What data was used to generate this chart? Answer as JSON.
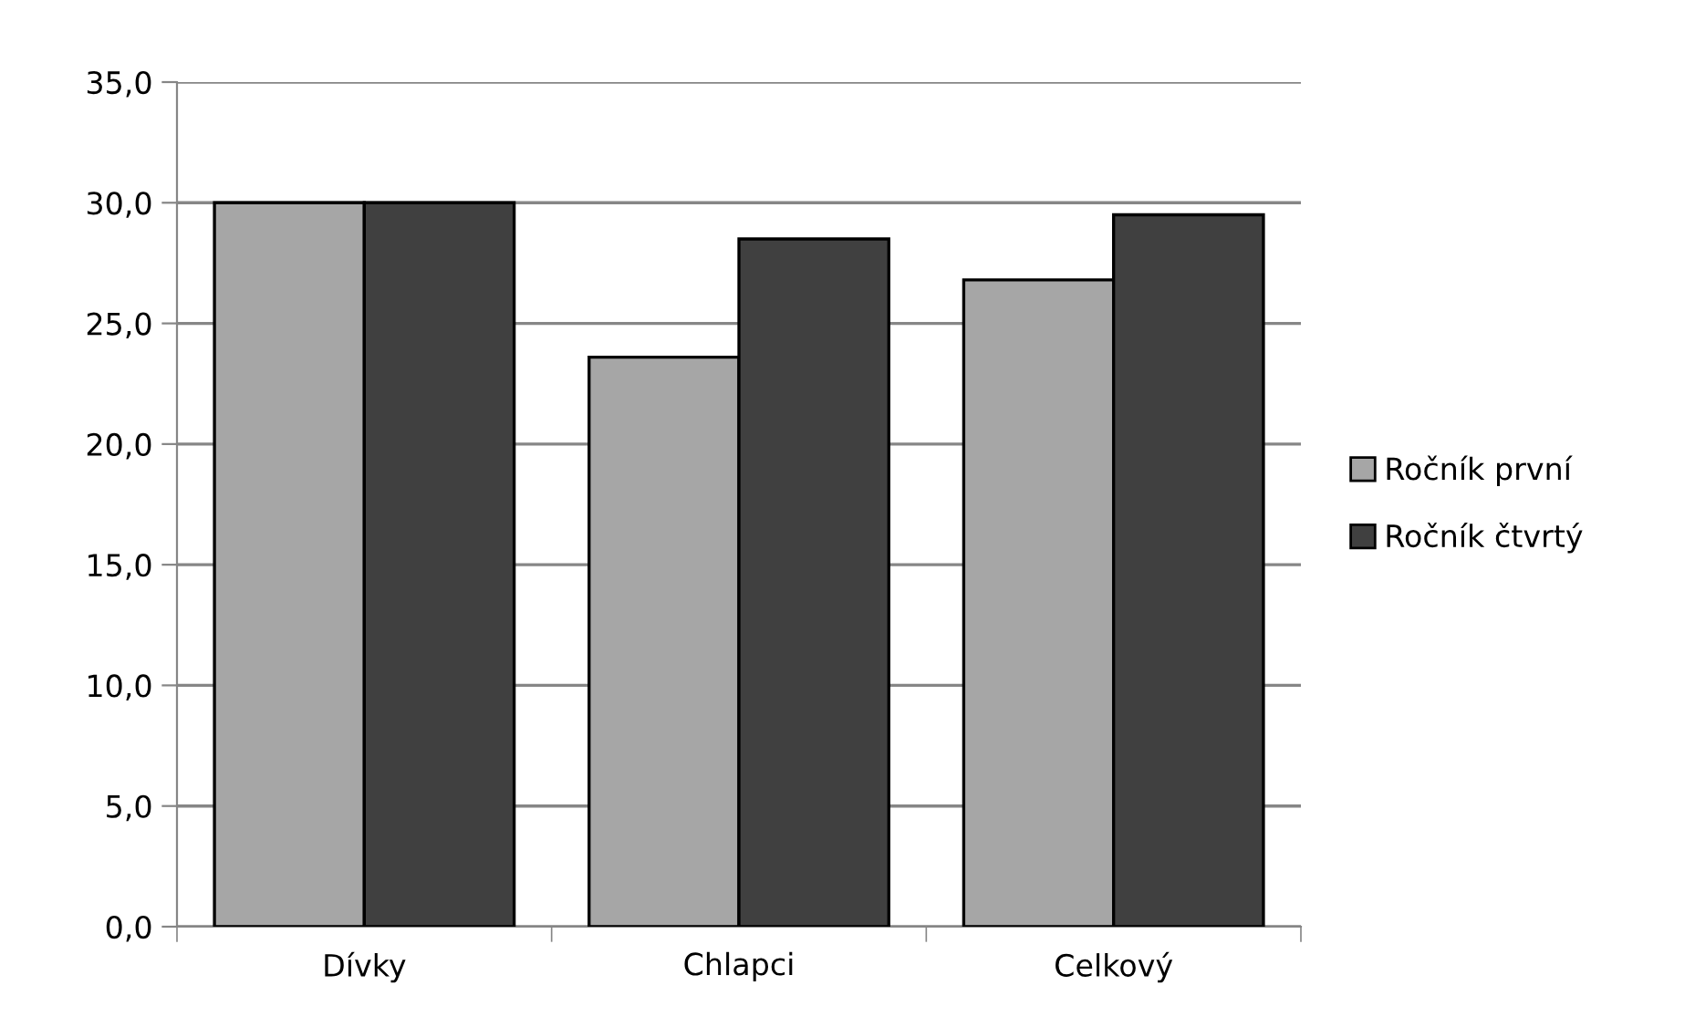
{
  "chart_data": {
    "type": "bar",
    "categories": [
      "Dívky",
      "Chlapci",
      "Celkový"
    ],
    "series": [
      {
        "name": "Ročník první",
        "color": "#a6a6a6",
        "values": [
          30.0,
          23.6,
          26.8
        ]
      },
      {
        "name": "Ročník čtvrtý",
        "color": "#404040",
        "values": [
          30.0,
          28.5,
          29.5
        ]
      }
    ],
    "ylim": [
      0,
      35
    ],
    "yticks": [
      {
        "value": 0,
        "label": "0,0"
      },
      {
        "value": 5,
        "label": "5,0"
      },
      {
        "value": 10,
        "label": "10,0"
      },
      {
        "value": 15,
        "label": "15,0"
      },
      {
        "value": 20,
        "label": "20,0"
      },
      {
        "value": 25,
        "label": "25,0"
      },
      {
        "value": 30,
        "label": "30,0"
      },
      {
        "value": 35,
        "label": "35,0"
      }
    ],
    "grid": "y",
    "legend": "right"
  }
}
